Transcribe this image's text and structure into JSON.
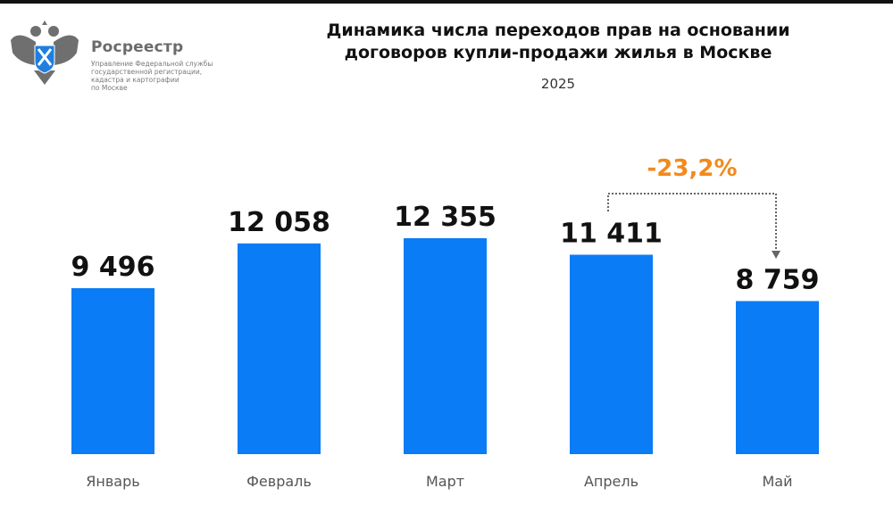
{
  "logo": {
    "brand": "Росреестр",
    "org_lines": [
      "Управление Федеральной службы",
      "государственной регистрации,",
      "кадастра и картографии",
      "по Москве"
    ]
  },
  "chart_data": {
    "type": "bar",
    "title_lines": [
      "Динамика числа переходов прав на основании",
      "договоров купли-продажи жилья в Москве"
    ],
    "subtitle": "2025",
    "categories": [
      "Январь",
      "Февраль",
      "Март",
      "Апрель",
      "Май"
    ],
    "values": [
      9496,
      12058,
      12355,
      11411,
      8759
    ],
    "value_labels": [
      "9 496",
      "12 058",
      "12 355",
      "11 411",
      "8 759"
    ],
    "xlabel": "",
    "ylabel": "",
    "ylim": [
      0,
      14000
    ],
    "grid": false,
    "legend": "none",
    "bar_color": "#0a7cf5",
    "annotation": {
      "text": "-23,2%",
      "from": "Апрель",
      "to": "Май",
      "color": "#f28a1c"
    }
  }
}
